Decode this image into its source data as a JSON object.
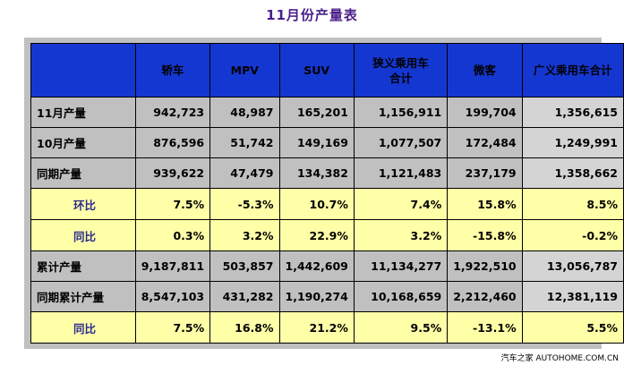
{
  "title": "11月份产量表",
  "columns": [
    "",
    "轿车",
    "MPV",
    "SUV",
    [
      "狭义乘用车",
      "合计"
    ],
    "微客",
    "广义乘用车合计"
  ],
  "rows": [
    {
      "label": "11月产量",
      "type": "value",
      "cells": [
        "942,723",
        "48,987",
        "165,201",
        "1,156,911",
        "199,704",
        "1,356,615"
      ]
    },
    {
      "label": "10月产量",
      "type": "value",
      "cells": [
        "876,596",
        "51,742",
        "149,169",
        "1,077,507",
        "172,484",
        "1,249,991"
      ]
    },
    {
      "label": "同期产量",
      "type": "value",
      "cells": [
        "939,622",
        "47,479",
        "134,382",
        "1,121,483",
        "237,179",
        "1,358,662"
      ]
    },
    {
      "label": "环比",
      "type": "ratio",
      "cells": [
        "7.5%",
        "-5.3%",
        "10.7%",
        "7.4%",
        "15.8%",
        "8.5%"
      ]
    },
    {
      "label": "同比",
      "type": "ratio",
      "cells": [
        "0.3%",
        "3.2%",
        "22.9%",
        "3.2%",
        "-15.8%",
        "-0.2%"
      ]
    },
    {
      "label": "累计产量",
      "type": "value",
      "cells": [
        "9,187,811",
        "503,857",
        "1,442,609",
        "11,134,277",
        "1,922,510",
        "13,056,787"
      ]
    },
    {
      "label": "同期累计产量",
      "type": "value",
      "cells": [
        "8,547,103",
        "431,282",
        "1,190,274",
        "10,168,659",
        "2,212,460",
        "12,381,119"
      ]
    },
    {
      "label": "同比",
      "type": "ratio",
      "cells": [
        "7.5%",
        "16.8%",
        "21.2%",
        "9.5%",
        "-13.1%",
        "5.5%"
      ]
    }
  ],
  "colors": {
    "header": "#1537d1",
    "ratio_row": "#ffffa8",
    "negative": "#ee0000",
    "positive": "#008800",
    "total_column": "#d4d4d4"
  },
  "watermark": "汽车之家 AUTOHOME.COM.CN"
}
